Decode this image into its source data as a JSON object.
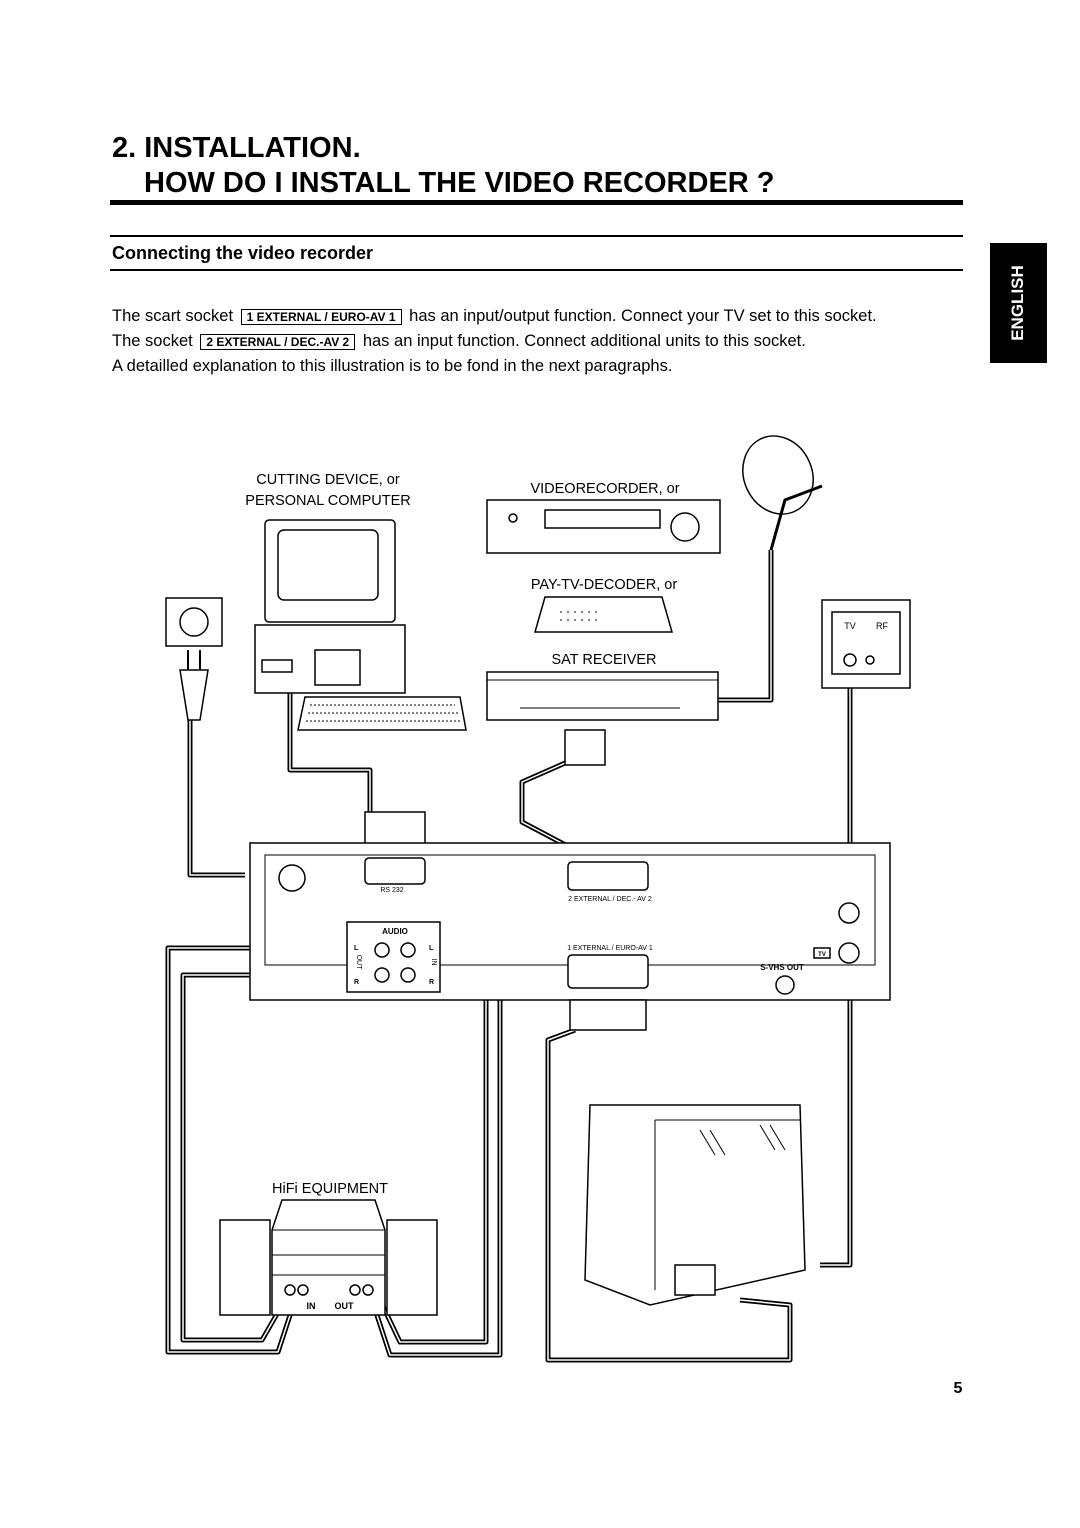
{
  "header": {
    "title_line1": "2. INSTALLATION.",
    "title_line2": "HOW DO I INSTALL THE VIDEO RECORDER ?"
  },
  "section": {
    "title": "Connecting the video recorder"
  },
  "side_tab": "ENGLISH",
  "body": {
    "line1": {
      "before": "The scart socket",
      "socket": "1 EXTERNAL / EURO-AV 1",
      "after": "has an input/output function. Connect your TV set to this socket."
    },
    "line2": {
      "before": "The socket",
      "socket": "2 EXTERNAL / DEC.-AV 2",
      "after": "has an input function. Connect additional units to this socket."
    },
    "line3": "A detailled explanation to this illustration is to be fond in the next paragraphs."
  },
  "diagram": {
    "computer_label": [
      "CUTTING DEVICE, or",
      "PERSONAL COMPUTER"
    ],
    "videorecorder_label": "VIDEORECORDER, or",
    "decoder_label": "PAY-TV-DECODER, or",
    "sat_label": "SAT RECEIVER",
    "hifi_label": "HiFi EQUIPMENT",
    "wall_outlet": [
      "TV",
      "RF"
    ],
    "rs232": "RS 232",
    "audio": "AUDIO",
    "audio_out": "OUT",
    "audio_in": "IN",
    "audio_channels": [
      "L",
      "R",
      "L",
      "R"
    ],
    "scart2": "2 EXTERNAL / DEC.- AV 2",
    "scart1": "1 EXTERNAL / EURO-AV 1",
    "svhs": "S-VHS OUT",
    "tv_icon": "TV",
    "hifi_jacks": [
      "IN",
      "OUT"
    ]
  },
  "page_number": "5"
}
